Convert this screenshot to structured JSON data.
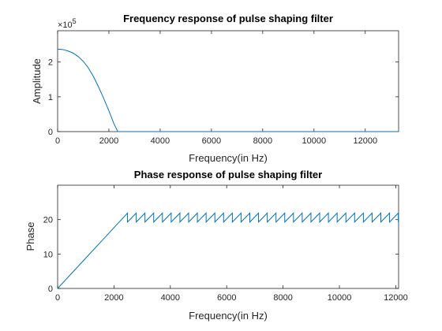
{
  "chart_data": [
    {
      "type": "line",
      "title": "Frequency response of pulse shaping filter",
      "xlabel": "Frequency(in Hz)",
      "ylabel": "Amplitude",
      "xlim": [
        0,
        13300
      ],
      "ylim": [
        0,
        2.9
      ],
      "y_multiplier_label": "×10",
      "y_multiplier_exponent": "5",
      "x_ticks": [
        "0",
        "2000",
        "4000",
        "6000",
        "8000",
        "10000",
        "12000"
      ],
      "x_tick_values": [
        0,
        2000,
        4000,
        6000,
        8000,
        10000,
        12000
      ],
      "y_ticks": [
        "0",
        "1",
        "2"
      ],
      "y_tick_values": [
        0,
        1,
        2
      ],
      "color": "#0072bd",
      "grid": false,
      "series": [
        {
          "x": [
            0,
            200,
            400,
            600,
            800,
            1000,
            1200,
            1400,
            1600,
            1800,
            2000,
            2200,
            2350,
            2400,
            3000,
            4000,
            6000,
            8000,
            10000,
            12000,
            13300
          ],
          "y": [
            2.37,
            2.36,
            2.32,
            2.26,
            2.16,
            2.02,
            1.83,
            1.58,
            1.28,
            0.95,
            0.6,
            0.22,
            0.0,
            0.0,
            0.0,
            0.0,
            0.0,
            0.0,
            0.0,
            0.0,
            0.0
          ]
        }
      ]
    },
    {
      "type": "line",
      "title": "Phase response of pulse shaping filter",
      "xlabel": "Frequency(in Hz)",
      "ylabel": "Phase",
      "xlim": [
        0,
        12100
      ],
      "ylim": [
        0,
        30
      ],
      "x_ticks": [
        "0",
        "2000",
        "4000",
        "6000",
        "8000",
        "10000",
        "12000"
      ],
      "x_tick_values": [
        0,
        2000,
        4000,
        6000,
        8000,
        10000,
        12000
      ],
      "y_ticks": [
        "0",
        "10",
        "20"
      ],
      "y_tick_values": [
        0,
        10,
        20
      ],
      "color": "#0072bd",
      "grid": false,
      "series": [
        {
          "linear_segment": {
            "x": [
              0,
              2480
            ],
            "y": [
              0,
              21.9
            ]
          },
          "sawtooth": {
            "x_start": 2480,
            "x_end": 12100,
            "period": 310,
            "y_low": 19.3,
            "y_high": 21.9
          }
        }
      ]
    }
  ]
}
